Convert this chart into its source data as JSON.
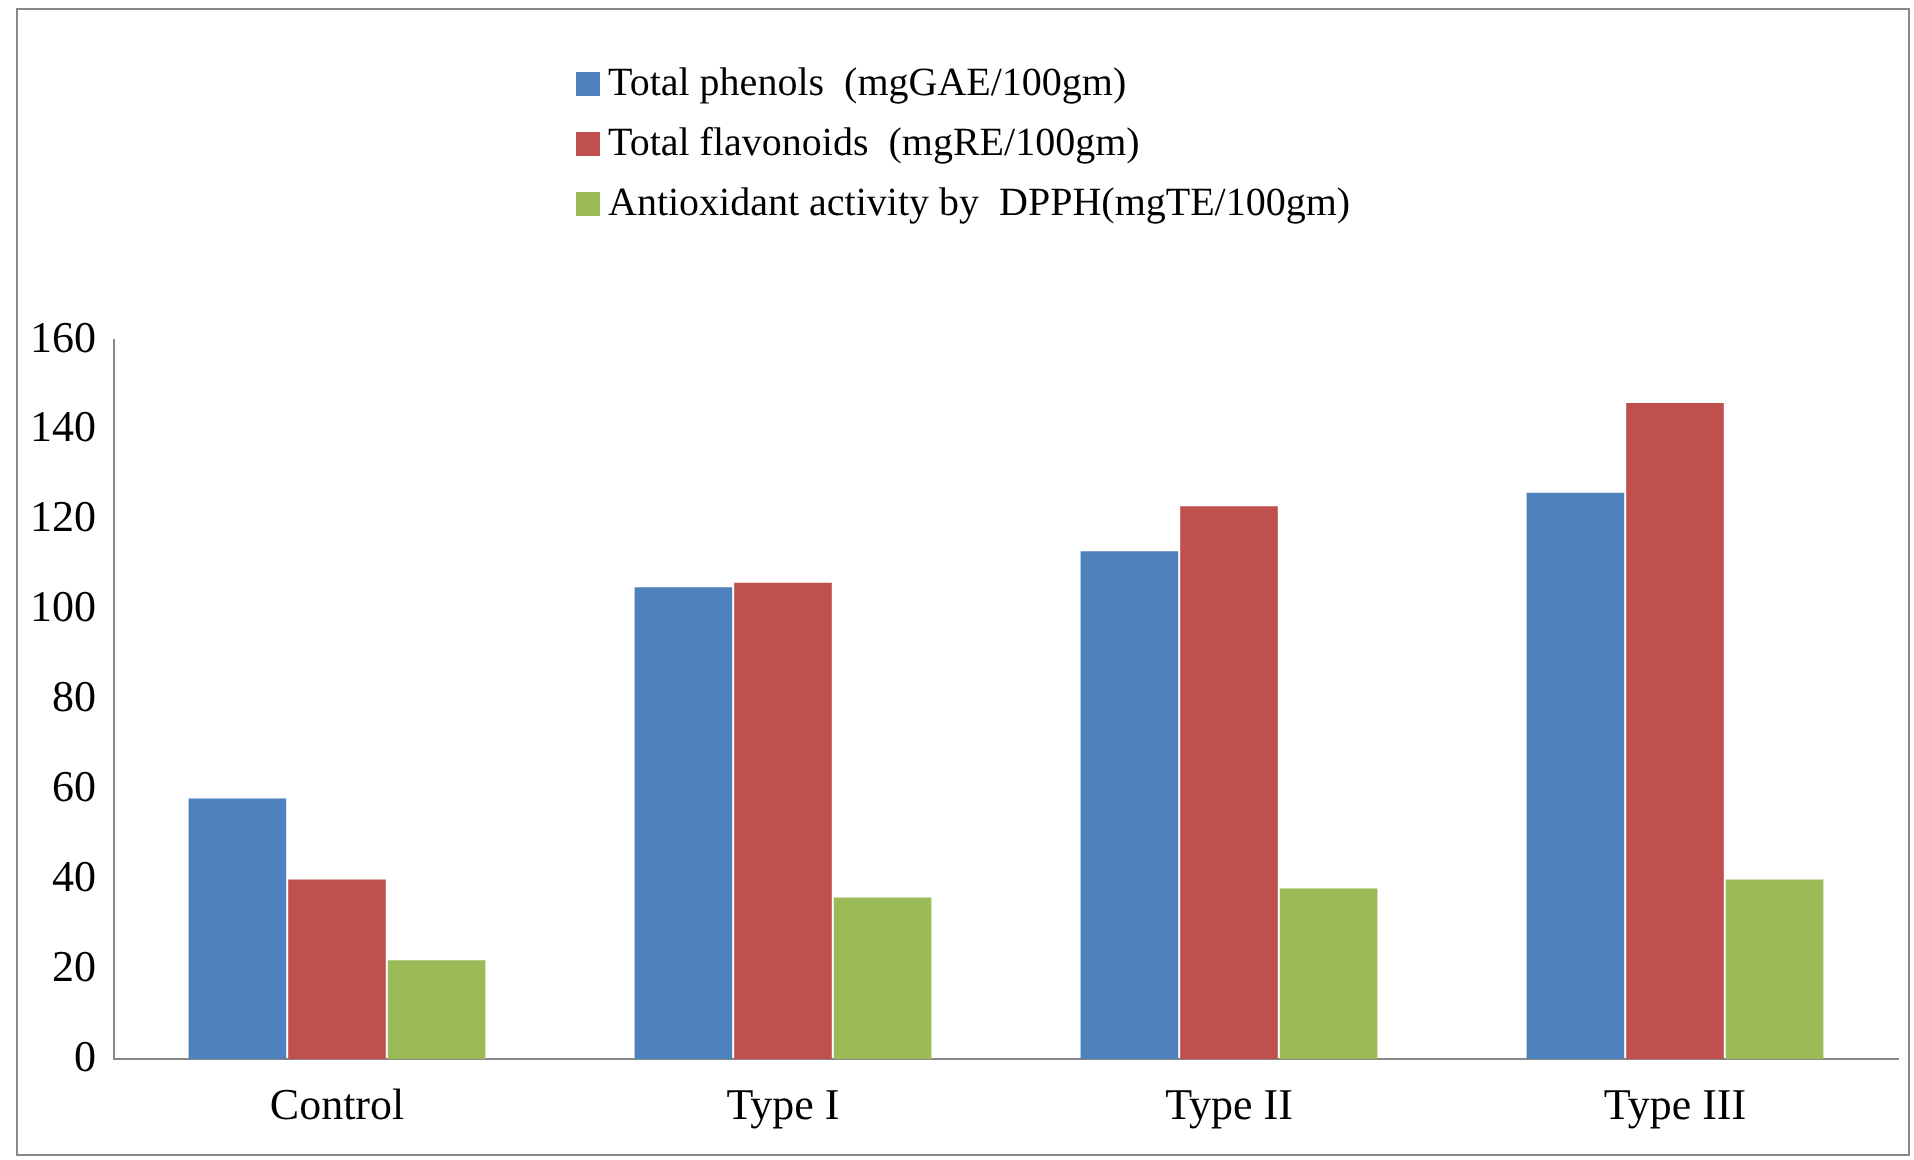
{
  "chart_data": {
    "type": "bar",
    "categories": [
      "Control",
      "Type I",
      "Type II",
      "Type III"
    ],
    "series": [
      {
        "name": "Total phenols  (mgGAE/100gm)",
        "color": "#4f81bd",
        "values": [
          58,
          105,
          113,
          126
        ]
      },
      {
        "name": "Total flavonoids  (mgRE/100gm)",
        "color": "#c0504d",
        "values": [
          40,
          106,
          123,
          146
        ]
      },
      {
        "name": "Antioxidant activity by  DPPH(mgTE/100gm)",
        "color": "#9bbb59",
        "values": [
          22,
          36,
          38,
          40
        ]
      }
    ],
    "ylim": [
      0,
      160
    ],
    "yticks": [
      0,
      20,
      40,
      60,
      80,
      100,
      120,
      140,
      160
    ],
    "grid": false,
    "legend": "top"
  }
}
